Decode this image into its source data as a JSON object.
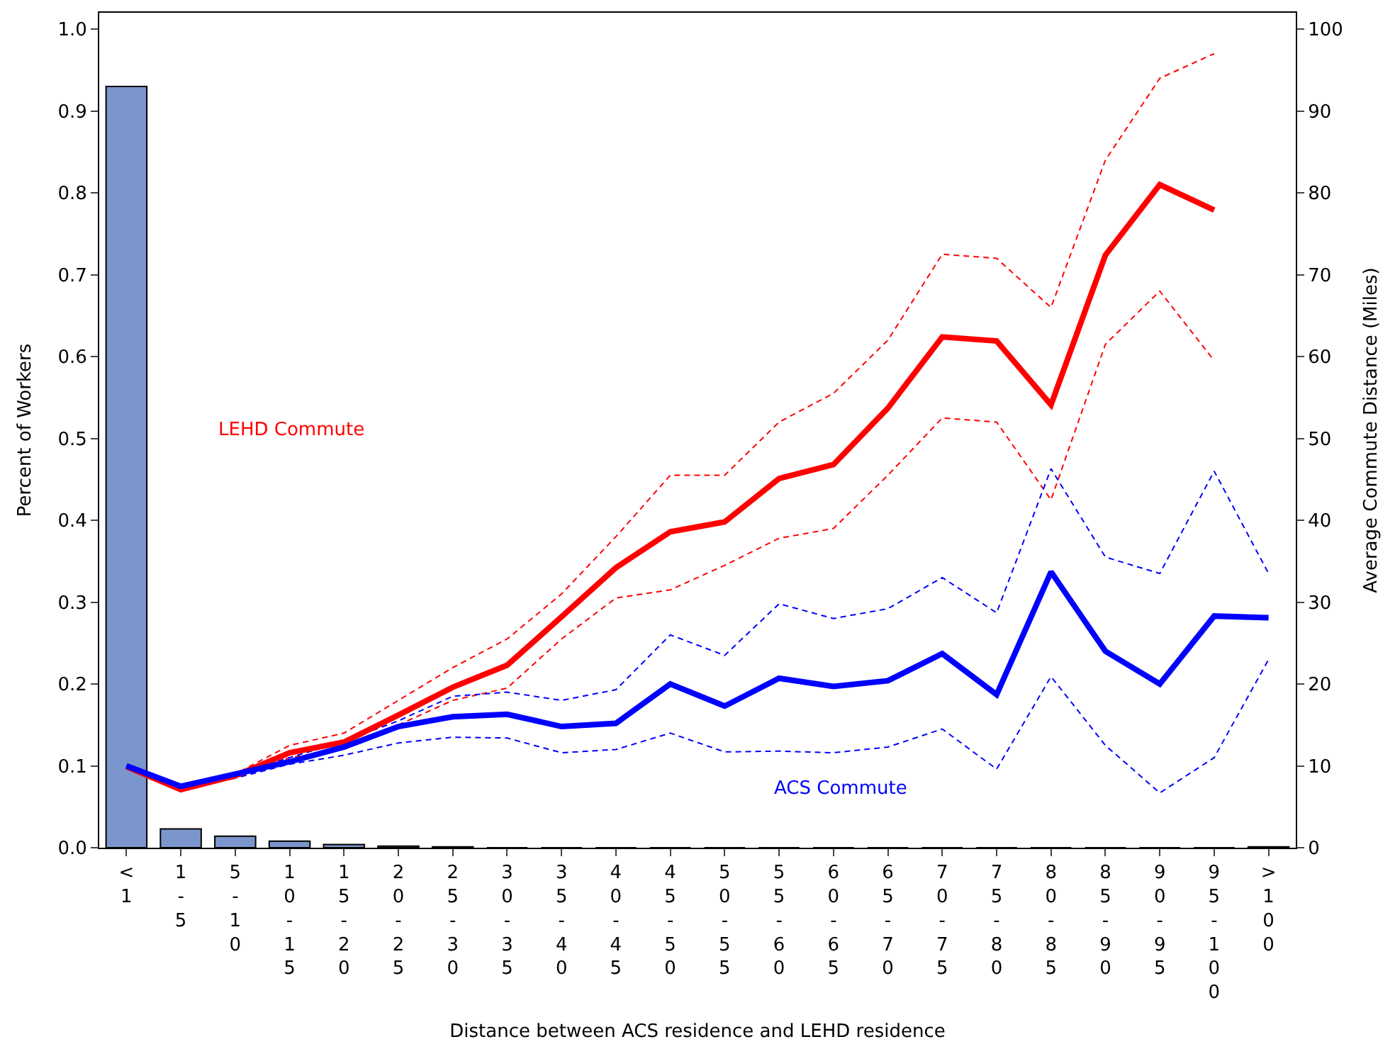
{
  "chart_data": {
    "type": "bar",
    "xlabel": "Distance between ACS residence and LEHD residence",
    "ylabel": "Percent of Workers",
    "y2label": "Average Commute Distance (Miles)",
    "categories": [
      "<1",
      "1-5",
      "5-10",
      "10-15",
      "15-20",
      "20-25",
      "25-30",
      "30-35",
      "35-40",
      "40-45",
      "45-50",
      "50-55",
      "55-60",
      "60-65",
      "65-70",
      "70-75",
      "75-80",
      "80-85",
      "85-90",
      "90-95",
      "95-100",
      ">100"
    ],
    "ylim": [
      0,
      1.02
    ],
    "yticks": [
      {
        "value": 0,
        "label": "0.0"
      },
      0.1,
      0.2,
      0.3,
      0.4,
      0.5,
      0.6,
      0.7,
      0.8,
      0.9,
      {
        "value": 1,
        "label": "1.0"
      }
    ],
    "y2lim": [
      0,
      102
    ],
    "y2ticks": [
      0,
      10,
      20,
      30,
      40,
      50,
      60,
      70,
      80,
      90,
      100
    ],
    "legend": false,
    "series": [
      {
        "color": "#7b96cc",
        "values": [
          0.93,
          0.023,
          0.014,
          0.008,
          0.004,
          0.002,
          0.001,
          0,
          0,
          0,
          0,
          0,
          0,
          0,
          0,
          0,
          0,
          0,
          0,
          0,
          0,
          0.001
        ]
      },
      {
        "type": "line",
        "axis": "y2",
        "line_style": "dashed",
        "color": "#ff0000",
        "values": [
          9.9,
          7,
          8.5,
          11,
          12,
          15,
          18,
          19.5,
          25.5,
          30.5,
          31.5,
          34.5,
          37.8,
          39,
          45.5,
          52.5,
          52,
          42.5,
          61.5,
          68,
          59.5,
          null
        ]
      },
      {
        "type": "line",
        "axis": "y2",
        "line_style": "dashed",
        "color": "#ff0000",
        "values": [
          9.9,
          7.5,
          9,
          12.5,
          14,
          18,
          22,
          25.5,
          31,
          38,
          45.5,
          45.5,
          52,
          55.5,
          62,
          72.5,
          72,
          66,
          84,
          94,
          97,
          null
        ]
      },
      {
        "type": "line",
        "axis": "y2",
        "line_style": "dashed",
        "color": "#0000ff",
        "values": [
          10,
          7.5,
          8.5,
          10.2,
          11.3,
          12.8,
          13.5,
          13.4,
          11.6,
          12,
          14,
          11.7,
          11.8,
          11.6,
          12.3,
          14.5,
          9.6,
          20.9,
          12.5,
          6.7,
          11,
          23
        ]
      },
      {
        "type": "line",
        "axis": "y2",
        "line_style": "dashed",
        "color": "#0000ff",
        "values": [
          10,
          7.5,
          9,
          11,
          13,
          15.5,
          18.5,
          19,
          18,
          19.3,
          26,
          23.5,
          29.8,
          28,
          29.2,
          33,
          28.7,
          46.3,
          35.5,
          33.5,
          46,
          33.5
        ]
      },
      {
        "type": "line",
        "name": "LEHD Commute",
        "axis": "y2",
        "line_style": "solid",
        "color": "#ff0000",
        "values": [
          9.9,
          7.1,
          8.8,
          11.6,
          12.9,
          16.2,
          19.6,
          22.3,
          28.2,
          34.2,
          38.6,
          39.8,
          45.1,
          46.8,
          53.7,
          62.4,
          61.9,
          54.1,
          72.4,
          81,
          77.9,
          null
        ]
      },
      {
        "type": "line",
        "name": "ACS Commute",
        "axis": "y2",
        "line_style": "solid",
        "color": "#0000ff",
        "values": [
          10,
          7.5,
          9,
          10.5,
          12.3,
          14.8,
          16,
          16.3,
          14.8,
          15.2,
          20,
          17.3,
          20.7,
          19.7,
          20.4,
          23.7,
          18.7,
          33.7,
          24,
          20,
          28.3,
          28.1
        ]
      }
    ]
  }
}
